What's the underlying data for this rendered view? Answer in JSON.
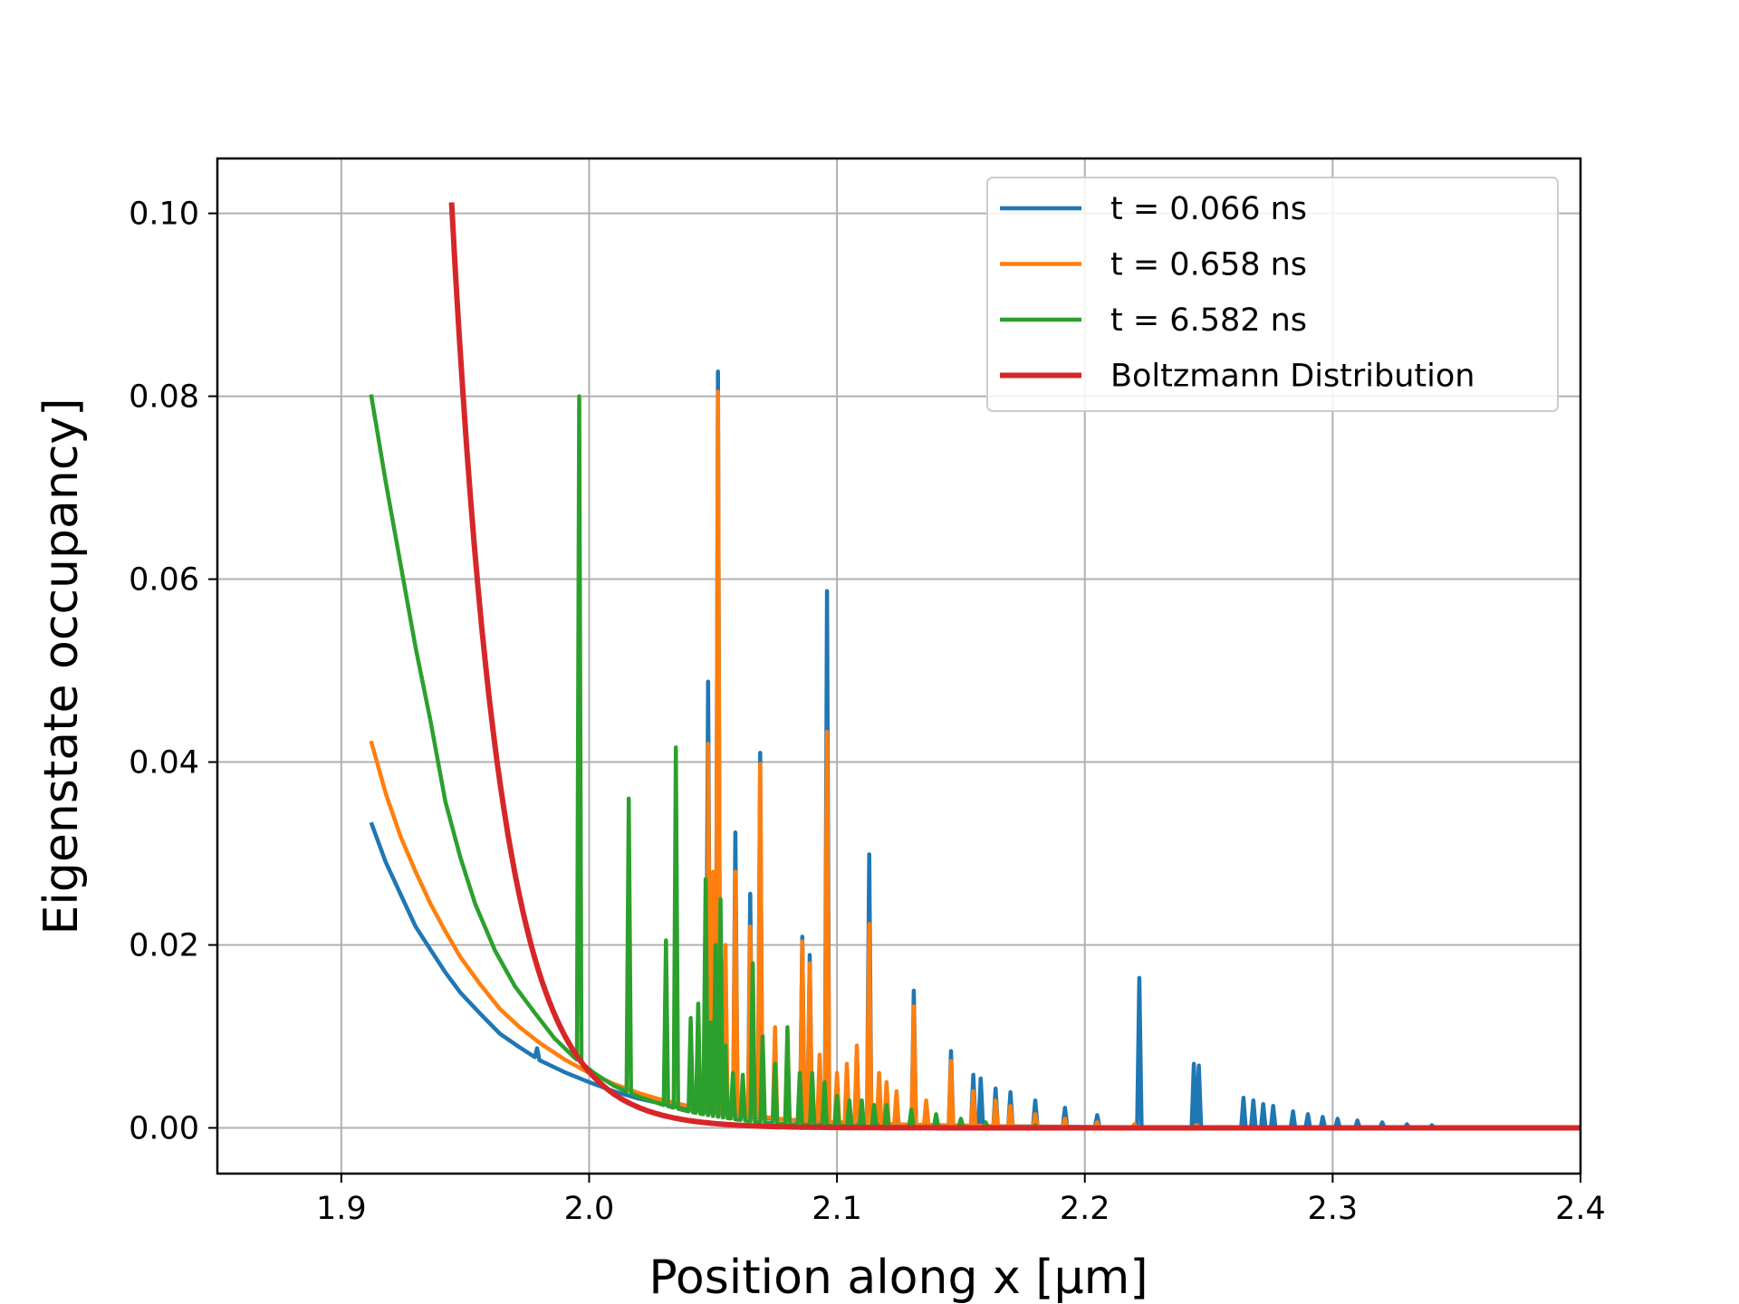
{
  "chart_data": {
    "type": "line",
    "title": "",
    "xlabel": "Position along x [μm]",
    "ylabel": "Eigenstate occupancy]",
    "xlim": [
      1.85,
      2.4
    ],
    "ylim": [
      -0.005,
      0.106
    ],
    "grid": true,
    "legend_position": "top-right",
    "x_ticks": [
      {
        "value": 1.9,
        "label": "1.9"
      },
      {
        "value": 2.0,
        "label": "2.0"
      },
      {
        "value": 2.1,
        "label": "2.1"
      },
      {
        "value": 2.2,
        "label": "2.2"
      },
      {
        "value": 2.3,
        "label": "2.3"
      },
      {
        "value": 2.4,
        "label": "2.4"
      }
    ],
    "y_ticks": [
      {
        "value": 0.0,
        "label": "0.00"
      },
      {
        "value": 0.02,
        "label": "0.02"
      },
      {
        "value": 0.04,
        "label": "0.04"
      },
      {
        "value": 0.06,
        "label": "0.06"
      },
      {
        "value": 0.08,
        "label": "0.08"
      },
      {
        "value": 0.1,
        "label": "0.10"
      }
    ],
    "series": [
      {
        "name": "t = 0.066 ns",
        "color": "#1f77b4",
        "baseline": [
          [
            1.912,
            0.0334
          ],
          [
            1.918,
            0.029
          ],
          [
            1.924,
            0.0255
          ],
          [
            1.93,
            0.022
          ],
          [
            1.936,
            0.0195
          ],
          [
            1.942,
            0.017
          ],
          [
            1.948,
            0.0148
          ],
          [
            1.956,
            0.0125
          ],
          [
            1.964,
            0.0103
          ],
          [
            1.972,
            0.0088
          ],
          [
            1.98,
            0.0074
          ],
          [
            1.99,
            0.0061
          ],
          [
            2.0,
            0.005
          ],
          [
            2.01,
            0.004
          ],
          [
            2.02,
            0.0032
          ],
          [
            2.03,
            0.0026
          ],
          [
            2.04,
            0.0021
          ],
          [
            2.05,
            0.0017
          ],
          [
            2.06,
            0.0014
          ],
          [
            2.07,
            0.0011
          ],
          [
            2.08,
            0.0009
          ],
          [
            2.09,
            0.0007
          ],
          [
            2.1,
            0.0006
          ],
          [
            2.12,
            0.0004
          ],
          [
            2.14,
            0.0003
          ],
          [
            2.16,
            0.0002
          ],
          [
            2.18,
            0.00015
          ],
          [
            2.2,
            0.0001
          ],
          [
            2.25,
            5e-05
          ],
          [
            2.3,
            2e-05
          ],
          [
            2.35,
            1e-05
          ],
          [
            2.4,
            0.0
          ]
        ],
        "spikes": [
          [
            1.979,
            0.0087
          ],
          [
            1.997,
            0.0032
          ],
          [
            2.048,
            0.0488
          ],
          [
            2.052,
            0.0827
          ],
          [
            2.059,
            0.0323
          ],
          [
            2.065,
            0.0256
          ],
          [
            2.069,
            0.041
          ],
          [
            2.086,
            0.0209
          ],
          [
            2.089,
            0.0189
          ],
          [
            2.096,
            0.0587
          ],
          [
            2.113,
            0.0299
          ],
          [
            2.131,
            0.015
          ],
          [
            2.146,
            0.0084
          ],
          [
            2.155,
            0.0058
          ],
          [
            2.158,
            0.0054
          ],
          [
            2.164,
            0.0043
          ],
          [
            2.17,
            0.0039
          ],
          [
            2.18,
            0.003
          ],
          [
            2.192,
            0.0022
          ],
          [
            2.205,
            0.0014
          ],
          [
            2.222,
            0.0164
          ],
          [
            2.244,
            0.007
          ],
          [
            2.246,
            0.0068
          ],
          [
            2.264,
            0.0033
          ],
          [
            2.268,
            0.003
          ],
          [
            2.272,
            0.0026
          ],
          [
            2.276,
            0.0024
          ],
          [
            2.284,
            0.0018
          ],
          [
            2.29,
            0.0015
          ],
          [
            2.296,
            0.0012
          ],
          [
            2.302,
            0.001
          ],
          [
            2.31,
            0.0008
          ],
          [
            2.32,
            0.0006
          ],
          [
            2.33,
            0.0004
          ],
          [
            2.34,
            0.0003
          ]
        ]
      },
      {
        "name": "t = 0.658 ns",
        "color": "#ff7f0e",
        "baseline": [
          [
            1.912,
            0.0423
          ],
          [
            1.918,
            0.0365
          ],
          [
            1.924,
            0.0318
          ],
          [
            1.93,
            0.028
          ],
          [
            1.936,
            0.0245
          ],
          [
            1.942,
            0.0215
          ],
          [
            1.948,
            0.0187
          ],
          [
            1.956,
            0.0157
          ],
          [
            1.964,
            0.013
          ],
          [
            1.972,
            0.011
          ],
          [
            1.98,
            0.0093
          ],
          [
            1.99,
            0.0075
          ],
          [
            2.0,
            0.006
          ],
          [
            2.01,
            0.0048
          ],
          [
            2.02,
            0.0038
          ],
          [
            2.03,
            0.003
          ],
          [
            2.04,
            0.0024
          ],
          [
            2.05,
            0.0019
          ],
          [
            2.06,
            0.0015
          ],
          [
            2.07,
            0.0012
          ],
          [
            2.08,
            0.0009
          ],
          [
            2.09,
            0.0007
          ],
          [
            2.1,
            0.0006
          ],
          [
            2.12,
            0.0004
          ],
          [
            2.14,
            0.0003
          ],
          [
            2.16,
            0.0002
          ],
          [
            2.18,
            0.00012
          ],
          [
            2.2,
            8e-05
          ],
          [
            2.25,
            3e-05
          ],
          [
            2.3,
            1e-05
          ],
          [
            2.4,
            0.0
          ]
        ],
        "spikes": [
          [
            1.979,
            0.009
          ],
          [
            1.997,
            0.0034
          ],
          [
            2.047,
            0.02
          ],
          [
            2.048,
            0.042
          ],
          [
            2.05,
            0.028
          ],
          [
            2.052,
            0.0805
          ],
          [
            2.055,
            0.02
          ],
          [
            2.059,
            0.028
          ],
          [
            2.065,
            0.022
          ],
          [
            2.069,
            0.0398
          ],
          [
            2.075,
            0.011
          ],
          [
            2.08,
            0.009
          ],
          [
            2.086,
            0.0204
          ],
          [
            2.089,
            0.018
          ],
          [
            2.093,
            0.008
          ],
          [
            2.096,
            0.0433
          ],
          [
            2.1,
            0.006
          ],
          [
            2.104,
            0.007
          ],
          [
            2.108,
            0.009
          ],
          [
            2.113,
            0.0223
          ],
          [
            2.117,
            0.006
          ],
          [
            2.12,
            0.005
          ],
          [
            2.124,
            0.004
          ],
          [
            2.131,
            0.0133
          ],
          [
            2.136,
            0.003
          ],
          [
            2.146,
            0.0073
          ],
          [
            2.155,
            0.004
          ],
          [
            2.164,
            0.003
          ],
          [
            2.17,
            0.0024
          ],
          [
            2.18,
            0.0015
          ],
          [
            2.192,
            0.001
          ],
          [
            2.205,
            0.0006
          ],
          [
            2.22,
            0.0004
          ],
          [
            2.245,
            0.0003
          ]
        ]
      },
      {
        "name": "t = 6.582 ns",
        "color": "#2ca02c",
        "baseline": [
          [
            1.912,
            0.0802
          ],
          [
            1.918,
            0.0705
          ],
          [
            1.924,
            0.0615
          ],
          [
            1.93,
            0.0525
          ],
          [
            1.936,
            0.0445
          ],
          [
            1.942,
            0.0357
          ],
          [
            1.948,
            0.0296
          ],
          [
            1.954,
            0.0245
          ],
          [
            1.962,
            0.0194
          ],
          [
            1.97,
            0.0155
          ],
          [
            1.978,
            0.0126
          ],
          [
            1.986,
            0.0098
          ],
          [
            1.994,
            0.0077
          ],
          [
            2.002,
            0.006
          ],
          [
            2.01,
            0.0046
          ],
          [
            2.02,
            0.0034
          ],
          [
            2.03,
            0.0025
          ],
          [
            2.04,
            0.0018
          ],
          [
            2.05,
            0.0013
          ],
          [
            2.06,
            0.0009
          ],
          [
            2.07,
            0.0006
          ],
          [
            2.08,
            0.0004
          ],
          [
            2.1,
            0.0002
          ],
          [
            2.12,
            0.0001
          ],
          [
            2.15,
            5e-05
          ],
          [
            2.2,
            1e-05
          ],
          [
            2.4,
            0.0
          ]
        ],
        "spikes": [
          [
            1.979,
            0.011
          ],
          [
            1.996,
            0.08
          ],
          [
            2.0,
            0.005
          ],
          [
            2.013,
            0.003
          ],
          [
            2.016,
            0.036
          ],
          [
            2.026,
            0.002
          ],
          [
            2.031,
            0.0205
          ],
          [
            2.035,
            0.0416
          ],
          [
            2.041,
            0.012
          ],
          [
            2.044,
            0.0136
          ],
          [
            2.047,
            0.0272
          ],
          [
            2.049,
            0.0115
          ],
          [
            2.051,
            0.02
          ],
          [
            2.053,
            0.025
          ],
          [
            2.055,
            0.009
          ],
          [
            2.058,
            0.006
          ],
          [
            2.062,
            0.0058
          ],
          [
            2.066,
            0.018
          ],
          [
            2.07,
            0.01
          ],
          [
            2.075,
            0.007
          ],
          [
            2.08,
            0.011
          ],
          [
            2.085,
            0.006
          ],
          [
            2.09,
            0.006
          ],
          [
            2.095,
            0.005
          ],
          [
            2.1,
            0.0035
          ],
          [
            2.105,
            0.003
          ],
          [
            2.11,
            0.003
          ],
          [
            2.115,
            0.0025
          ],
          [
            2.12,
            0.0025
          ],
          [
            2.13,
            0.002
          ],
          [
            2.14,
            0.0015
          ],
          [
            2.15,
            0.001
          ],
          [
            2.16,
            0.0006
          ],
          [
            2.18,
            0.0003
          ]
        ]
      },
      {
        "name": "Boltzmann Distribution",
        "color": "#d62728",
        "formula": "exp",
        "x_start": 1.9445,
        "x_end": 2.4,
        "y_start": 0.1012,
        "decay_length": 0.0198
      }
    ]
  }
}
